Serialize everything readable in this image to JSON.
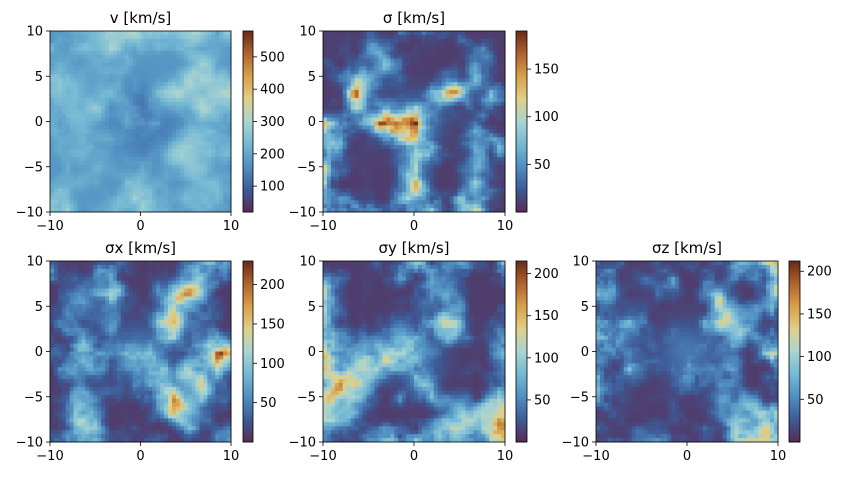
{
  "chart_data": [
    {
      "type": "heatmap",
      "title": "v [km/s]",
      "xlim": [
        -10,
        10
      ],
      "ylim": [
        -10,
        10
      ],
      "xticks": [
        "−10",
        "0",
        "10"
      ],
      "yticks": [
        "10",
        "5",
        "0",
        "−5",
        "−10"
      ],
      "colorbar": {
        "range": [
          20,
          580
        ],
        "ticks": [
          100,
          200,
          300,
          400,
          500
        ]
      },
      "colormap": [
        "#5b2a52",
        "#3d5a96",
        "#4f8dc0",
        "#74b8d4",
        "#a9d4d2",
        "#e0d08a",
        "#d9a24a",
        "#b06530",
        "#6b2a1a"
      ],
      "grid": false
    },
    {
      "type": "heatmap",
      "title": "σ [km/s]",
      "xlim": [
        -10,
        10
      ],
      "ylim": [
        -10,
        10
      ],
      "xticks": [
        "−10",
        "0",
        "10"
      ],
      "yticks": [
        "10",
        "5",
        "0",
        "−5",
        "−10"
      ],
      "colorbar": {
        "range": [
          0,
          190
        ],
        "ticks": [
          50,
          100,
          150
        ]
      },
      "colormap": [
        "#5b2a52",
        "#3d5a96",
        "#4f8dc0",
        "#74b8d4",
        "#a9d4d2",
        "#e0d08a",
        "#d9a24a",
        "#b06530",
        "#6b2a1a"
      ],
      "grid": false
    },
    {
      "type": "heatmap",
      "title": "σx [km/s]",
      "xlim": [
        -10,
        10
      ],
      "ylim": [
        -10,
        10
      ],
      "xticks": [
        "−10",
        "0",
        "10"
      ],
      "yticks": [
        "10",
        "5",
        "0",
        "−5",
        "−10"
      ],
      "colorbar": {
        "range": [
          0,
          230
        ],
        "ticks": [
          50,
          100,
          150,
          200
        ]
      },
      "colormap": [
        "#5b2a52",
        "#3d5a96",
        "#4f8dc0",
        "#74b8d4",
        "#a9d4d2",
        "#e0d08a",
        "#d9a24a",
        "#b06530",
        "#6b2a1a"
      ],
      "grid": false
    },
    {
      "type": "heatmap",
      "title": "σy [km/s]",
      "xlim": [
        -10,
        10
      ],
      "ylim": [
        -10,
        10
      ],
      "xticks": [
        "−10",
        "0",
        "10"
      ],
      "yticks": [
        "10",
        "5",
        "0",
        "−5",
        "−10"
      ],
      "colorbar": {
        "range": [
          0,
          215
        ],
        "ticks": [
          50,
          100,
          150,
          200
        ]
      },
      "colormap": [
        "#5b2a52",
        "#3d5a96",
        "#4f8dc0",
        "#74b8d4",
        "#a9d4d2",
        "#e0d08a",
        "#d9a24a",
        "#b06530",
        "#6b2a1a"
      ],
      "grid": false
    },
    {
      "type": "heatmap",
      "title": "σz [km/s]",
      "xlim": [
        -10,
        10
      ],
      "ylim": [
        -10,
        10
      ],
      "xticks": [
        "−10",
        "0",
        "10"
      ],
      "yticks": [
        "10",
        "5",
        "0",
        "−5",
        "−10"
      ],
      "colorbar": {
        "range": [
          0,
          212
        ],
        "ticks": [
          50,
          100,
          150,
          200
        ]
      },
      "colormap": [
        "#5b2a52",
        "#3d5a96",
        "#4f8dc0",
        "#74b8d4",
        "#a9d4d2",
        "#e0d08a",
        "#d9a24a",
        "#b06530",
        "#6b2a1a"
      ],
      "grid": false
    }
  ]
}
